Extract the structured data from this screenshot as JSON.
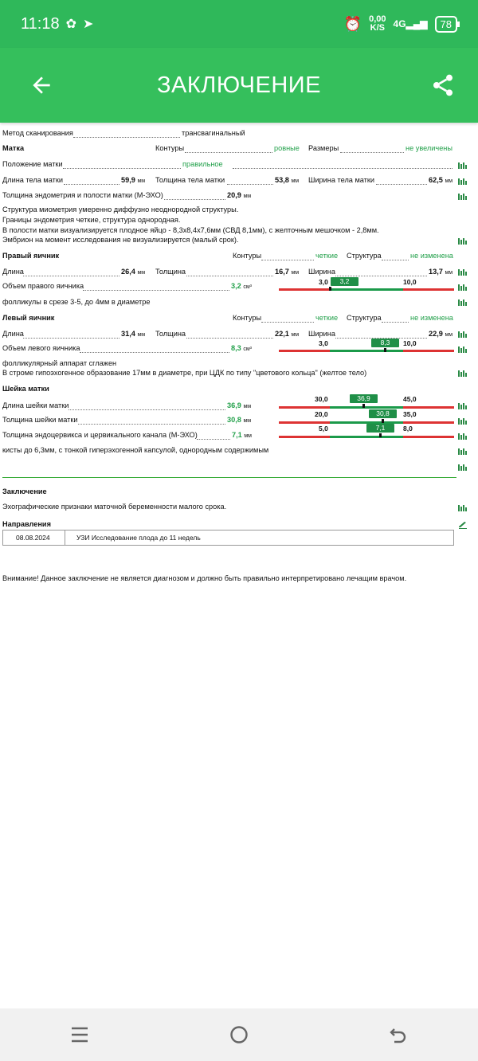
{
  "status": {
    "time": "11:18",
    "speed_top": "0,00",
    "speed_bottom": "K/S",
    "network": "4G",
    "battery": "78"
  },
  "appbar": {
    "title": "ЗАКЛЮЧЕНИЕ"
  },
  "report": {
    "method_label": "Метод сканирования",
    "method_value": "трансвагинальный",
    "uterus_title": "Матка",
    "contours_label": "Контуры",
    "contours_value": "ровные",
    "size_label": "Размеры",
    "size_value": "не увеличены",
    "position_label": "Положение матки",
    "position_value": "правильное",
    "body_length_label": "Длина тела матки",
    "body_length_value": "59,9",
    "body_thickness_label": "Толщина тела матки",
    "body_thickness_value": "53,8",
    "body_width_label": "Ширина тела матки",
    "body_width_value": "62,5",
    "unit_mm": "мм",
    "endometrium_label": "Толщина эндометрия и полости матки (М-ЭХО)",
    "endometrium_value": "20,9",
    "text1": "Структура миометрия умеренно диффузно неоднородной структуры.",
    "text2": "Границы эндометрия четкие, структура однородная.",
    "text3": "В полости матки визуализируется плодное яйцо - 8,3х8,4х7,6мм (СВД 8,1мм), с желточным мешочком - 2,8мм.",
    "text4": "Эмбрион на момент исследования не визуализируется (малый срок).",
    "right_ovary_title": "Правый яичник",
    "ro_contours_label": "Контуры",
    "ro_contours_value": "четкие",
    "ro_structure_label": "Структура",
    "ro_structure_value": "не изменена",
    "ro_length_label": "Длина",
    "ro_length_value": "26,4",
    "ro_thickness_label": "Толщина",
    "ro_thickness_value": "16,7",
    "ro_width_label": "Ширина",
    "ro_width_value": "13,7",
    "ro_volume_label": "Объем правого яичника",
    "ro_volume_value": "3,2",
    "unit_cm3": "см³",
    "ro_range_min": "3,0",
    "ro_range_max": "10,0",
    "ro_badge": "3,2",
    "ro_follicles": "фолликулы в срезе 3-5, до 4мм в диаметре",
    "left_ovary_title": "Левый яичник",
    "lo_contours_label": "Контуры",
    "lo_contours_value": "четкие",
    "lo_structure_label": "Структура",
    "lo_structure_value": "не изменена",
    "lo_length_label": "Длина",
    "lo_length_value": "31,4",
    "lo_thickness_label": "Толщина",
    "lo_thickness_value": "22,1",
    "lo_width_label": "Ширина",
    "lo_width_value": "22,9",
    "lo_volume_label": "Объем левого яичника",
    "lo_volume_value": "8,3",
    "lo_range_min": "3,0",
    "lo_range_max": "10,0",
    "lo_badge": "8,3",
    "lo_follicles": "фолликулярный аппарат сглажен",
    "lo_stroma": "В строме гипоэхогенное образование 17мм в диаметре, при ЦДК по типу \"цветового кольца\" (желтое тело)",
    "cervix_title": "Шейка матки",
    "cx_length_label": "Длина шейки матки",
    "cx_length_value": "36,9",
    "cx_length_min": "30,0",
    "cx_length_max": "45,0",
    "cx_length_badge": "36,9",
    "cx_thickness_label": "Толщина шейки матки",
    "cx_thickness_value": "30,8",
    "cx_thickness_min": "20,0",
    "cx_thickness_max": "35,0",
    "cx_thickness_badge": "30,8",
    "cx_endo_label": "Толщина эндоцервикса и цервикального канала (М-ЭХО)",
    "cx_endo_value": "7,1",
    "cx_endo_min": "5,0",
    "cx_endo_max": "8,0",
    "cx_endo_badge": "7,1",
    "cx_cysts": "кисты до 6,3мм, с тонкой гиперэхогенной капсулой, однородным содержимым",
    "conclusion_title": "Заключение",
    "conclusion_text": "Эхографические признаки маточной беременности малого срока.",
    "referrals_title": "Направления",
    "referral_date": "08.08.2024",
    "referral_text": "УЗИ Исследование плода до 11 недель",
    "warning": "Внимание! Данное заключение не является диагнозом и должно быть правильно интерпретировано лечащим врачом."
  }
}
